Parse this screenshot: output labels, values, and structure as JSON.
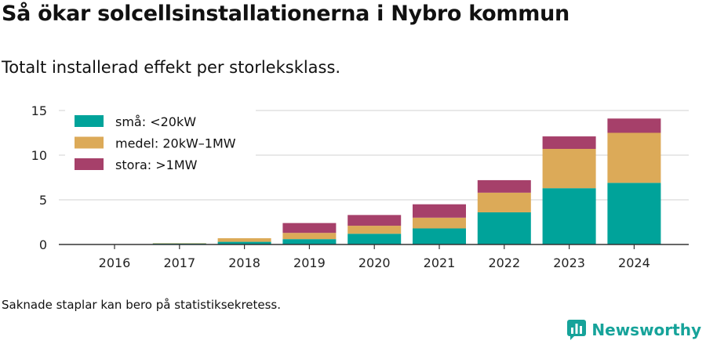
{
  "header": {
    "title": "Så ökar solcellsinstallationerna i Nybro kommun",
    "subtitle": "Totalt installerad effekt per storleksklass."
  },
  "footer": {
    "note": "Saknade staplar kan bero på statistiksekretess.",
    "brand": "Newsworthy"
  },
  "colors": {
    "small": "#00a39a",
    "medium": "#dcaa58",
    "large": "#a6406a",
    "grid": "#d9d9d9",
    "brand": "#16a39a"
  },
  "chart_data": {
    "type": "bar",
    "stacked": true,
    "categories": [
      "2016",
      "2017",
      "2018",
      "2019",
      "2020",
      "2021",
      "2022",
      "2023",
      "2024"
    ],
    "series": [
      {
        "name": "små: <20kW",
        "color": "#00a39a",
        "values": [
          0.03,
          0.12,
          0.3,
          0.6,
          1.2,
          1.8,
          3.6,
          6.3,
          6.9
        ]
      },
      {
        "name": "medel: 20kW–1MW",
        "color": "#dcaa58",
        "values": [
          0.0,
          0.03,
          0.4,
          0.7,
          0.9,
          1.2,
          2.2,
          4.4,
          5.6
        ]
      },
      {
        "name": "stora: >1MW",
        "color": "#a6406a",
        "values": [
          0.0,
          0.0,
          0.0,
          1.1,
          1.2,
          1.5,
          1.4,
          1.4,
          1.6
        ]
      }
    ],
    "yticks": [
      0,
      5,
      10,
      15
    ],
    "ylim": [
      0,
      15
    ],
    "grid": true,
    "legend_position": "top-left"
  }
}
